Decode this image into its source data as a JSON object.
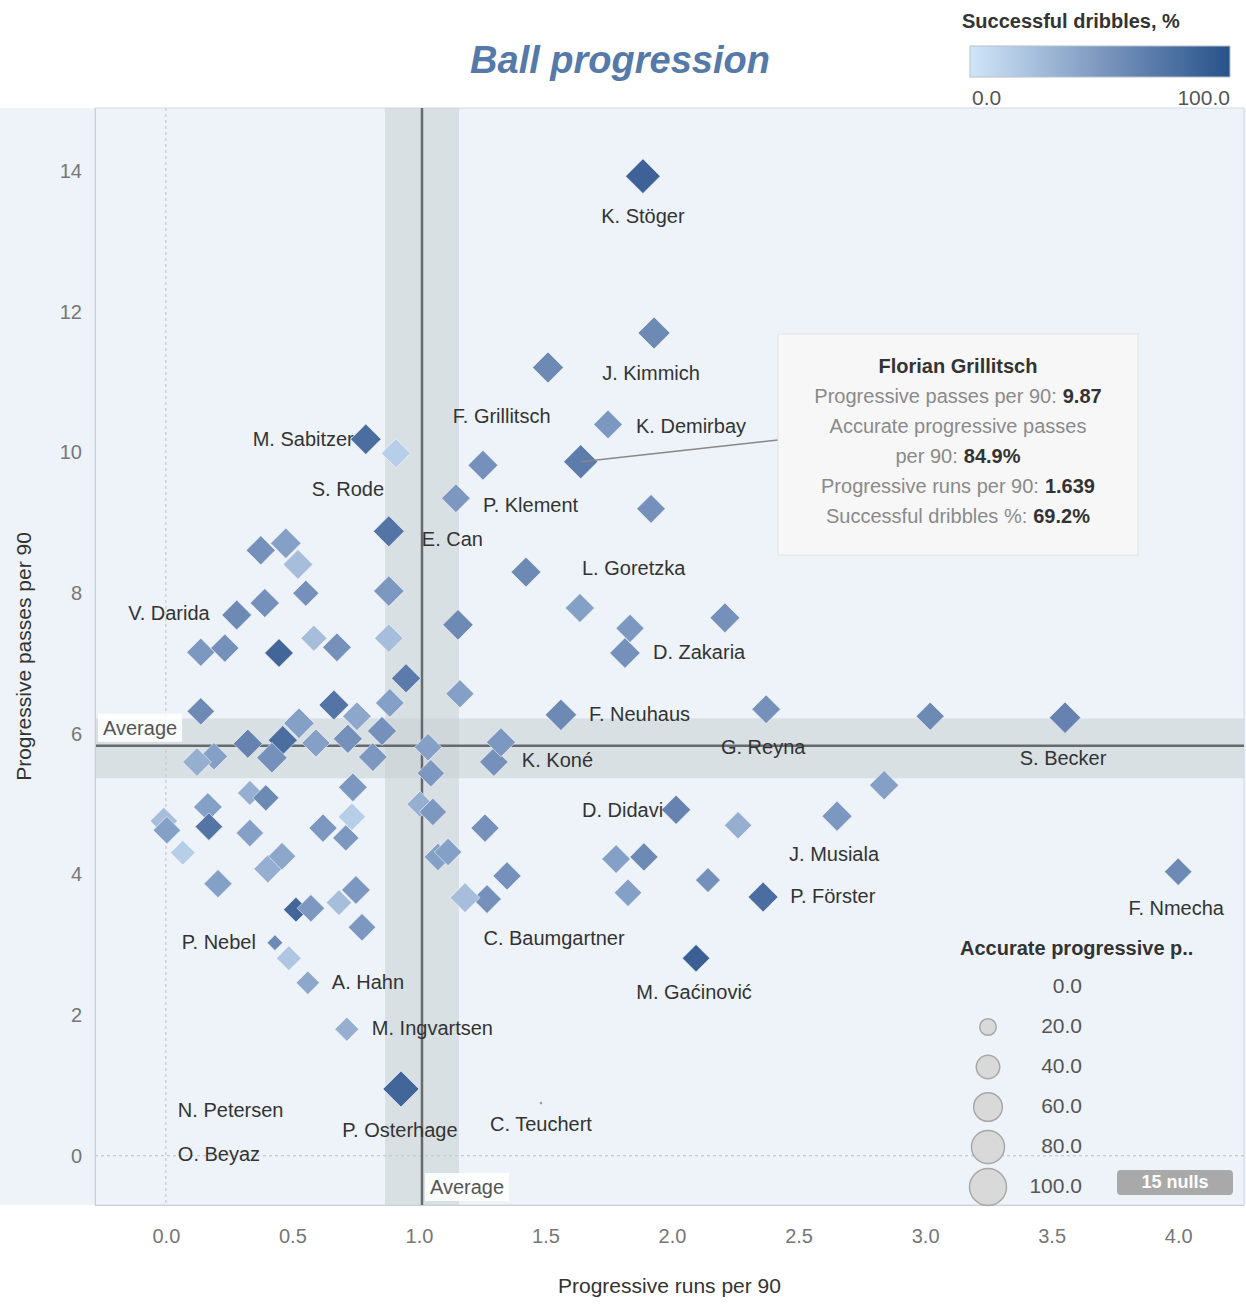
{
  "chart_data": {
    "type": "scatter",
    "title": "Ball progression",
    "x_label": "Progressive runs per 90",
    "y_label": "Progressive passes per 90",
    "marker": "diamond",
    "grid": false,
    "xlim": [
      -0.28,
      4.26
    ],
    "ylim": [
      -0.7,
      14.9
    ],
    "xticks": [
      {
        "value": 0,
        "label": "0.0"
      },
      {
        "value": 0.5,
        "label": "0.5"
      },
      {
        "value": 1,
        "label": "1.0"
      },
      {
        "value": 1.5,
        "label": "1.5"
      },
      {
        "value": 2,
        "label": "2.0"
      },
      {
        "value": 2.5,
        "label": "2.5"
      },
      {
        "value": 3,
        "label": "3.0"
      },
      {
        "value": 3.5,
        "label": "3.5"
      },
      {
        "value": 4,
        "label": "4.0"
      }
    ],
    "yticks": [
      0,
      2,
      4,
      6,
      8,
      10,
      12,
      14
    ],
    "averages": [
      {
        "axis": "x",
        "value": 1.012,
        "band": [
          0.866,
          1.158
        ],
        "label": "Average"
      },
      {
        "axis": "y",
        "value": 5.83,
        "band": [
          5.37,
          6.22
        ],
        "label": "Average"
      }
    ],
    "color_scale": {
      "title": "Successful dribbles, %",
      "range": [
        0,
        100
      ],
      "ticks": [
        {
          "value": 0,
          "label": "0.0"
        },
        {
          "value": 100,
          "label": "100.0"
        }
      ]
    },
    "size_legend": {
      "title": "Accurate progressive p..",
      "values": [
        {
          "value": 0,
          "label": "0.0"
        },
        {
          "value": 20,
          "label": "20.0"
        },
        {
          "value": 40,
          "label": "40.0"
        },
        {
          "value": 60,
          "label": "60.0"
        },
        {
          "value": 80,
          "label": "80.0"
        },
        {
          "value": 100,
          "label": "100.0"
        }
      ]
    },
    "nulls_label": "15 nulls",
    "tooltip": {
      "title": "Florian Grillitsch",
      "rows": [
        {
          "label": "Progressive passes per 90:",
          "value": 9.87
        },
        {
          "label": "Accurate progressive passes per 90:",
          "value": 84.9,
          "value_label": "84.9%"
        },
        {
          "label": "Progressive runs per 90:",
          "value": 1.639
        },
        {
          "label": "Successful dribbles %:",
          "value": 69.2,
          "value_label": "69.2%"
        }
      ]
    },
    "series": [
      {
        "x": [
          1.885,
          1.929,
          1.639,
          1.747,
          0.79,
          0.909,
          1.146,
          0.881,
          1.423,
          0.28,
          1.814,
          1.561,
          1.296,
          2.372,
          3.553,
          2.016,
          2.652,
          2.36,
          4,
          2.095,
          1.269,
          0.431,
          0.561,
          0.715,
          0,
          0,
          0.929,
          1.482,
          1.51,
          1.253,
          1.917,
          1.636,
          1.834,
          2.209,
          1.154,
          1.162,
          0.949,
          0.881,
          0.881,
          0.375,
          0.474,
          0.522,
          0.553,
          0.391,
          0.138,
          0.233,
          0.447,
          0.585,
          0.676,
          0.138,
          0.664,
          0.755,
          0.885,
          0.854,
          0.526,
          0.324,
          0.462,
          0.419,
          0.19,
          0.123,
          0.593,
          0.719,
          0.818,
          1.036,
          1.047,
          1.324,
          0.166,
          0.17,
          -0.008,
          0.004,
          0.067,
          0.206,
          0.332,
          0.332,
          0.395,
          0.403,
          0.459,
          0.621,
          0.711,
          0.739,
          0.735,
          0.751,
          0.775,
          0.684,
          0.514,
          0.573,
          0.486,
          1.004,
          1.055,
          1.075,
          1.115,
          1.182,
          1.261,
          1.348,
          1.779,
          1.889,
          1.826,
          2.142,
          2.261,
          2.838,
          3.02
        ],
        "values": [
          13.93,
          11.7,
          9.87,
          10.4,
          10.19,
          9.99,
          9.35,
          8.88,
          8.3,
          7.69,
          7.15,
          6.27,
          5.6,
          6.35,
          6.23,
          4.92,
          4.83,
          3.68,
          4.04,
          2.81,
          3.65,
          3.03,
          2.46,
          1.8,
          0.63,
          0,
          0.95,
          0.75,
          11.21,
          9.82,
          9.2,
          7.79,
          7.5,
          7.65,
          7.55,
          6.57,
          6.79,
          8.03,
          7.36,
          8.61,
          8.71,
          8.41,
          8,
          7.86,
          7.16,
          7.22,
          7.15,
          7.36,
          7.23,
          6.32,
          6.41,
          6.25,
          6.44,
          6.04,
          6.15,
          5.86,
          5.91,
          5.66,
          5.68,
          5.6,
          5.87,
          5.93,
          5.67,
          5.81,
          5.44,
          5.88,
          4.96,
          4.68,
          4.76,
          4.63,
          4.31,
          3.87,
          4.59,
          5.16,
          5.09,
          4.08,
          4.26,
          4.66,
          4.52,
          5.24,
          4.82,
          3.78,
          3.25,
          3.6,
          3.5,
          3.52,
          2.81,
          5,
          4.89,
          4.25,
          4.32,
          3.67,
          4.66,
          3.98,
          4.22,
          4.25,
          3.74,
          3.92,
          4.7,
          5.27,
          6.25
        ],
        "sizes": [
          88,
          75,
          84.9,
          60,
          68,
          62,
          60,
          70,
          65,
          65,
          68,
          72,
          60,
          60,
          72,
          62,
          66,
          65,
          55,
          55,
          60,
          18,
          40,
          42,
          0,
          0,
          95,
          1,
          70,
          65,
          60,
          62,
          58,
          65,
          68,
          58,
          62,
          68,
          60,
          62,
          68,
          65,
          50,
          62,
          58,
          58,
          60,
          50,
          60,
          55,
          65,
          60,
          60,
          62,
          68,
          62,
          62,
          68,
          55,
          60,
          58,
          62,
          60,
          55,
          55,
          62,
          60,
          55,
          55,
          55,
          45,
          58,
          55,
          45,
          50,
          58,
          55,
          58,
          50,
          60,
          55,
          60,
          55,
          48,
          45,
          55,
          45,
          50,
          55,
          55,
          55,
          65,
          58,
          58,
          60,
          58,
          55,
          45,
          55,
          62,
          58
        ],
        "dribbles": [
          88,
          60,
          69.2,
          50,
          80,
          15,
          50,
          75,
          60,
          60,
          55,
          60,
          55,
          55,
          65,
          65,
          50,
          80,
          60,
          90,
          55,
          60,
          40,
          35,
          0,
          0,
          85,
          50,
          60,
          55,
          55,
          45,
          50,
          55,
          60,
          45,
          70,
          50,
          25,
          55,
          45,
          25,
          55,
          55,
          50,
          55,
          85,
          25,
          55,
          60,
          75,
          40,
          45,
          55,
          45,
          65,
          80,
          55,
          45,
          35,
          45,
          55,
          50,
          45,
          50,
          50,
          45,
          75,
          25,
          45,
          15,
          45,
          45,
          35,
          60,
          35,
          40,
          50,
          50,
          50,
          15,
          50,
          50,
          25,
          85,
          50,
          20,
          35,
          50,
          45,
          45,
          25,
          55,
          55,
          45,
          60,
          45,
          55,
          35,
          45,
          60
        ],
        "labels": [
          "K. Stöger",
          "J. Kimmich",
          "F. Grillitsch",
          "K. Demirbay",
          "M. Sabitzer",
          "S. Rode",
          "P. Klement",
          "E. Can",
          "L. Goretzka",
          "V. Darida",
          "D. Zakaria",
          "F. Neuhaus",
          "K. Koné",
          "G. Reyna",
          "S. Becker",
          "D. Didavi",
          "J. Musiala",
          "P. Förster",
          "F. Nmecha",
          "M. Gaćinović",
          "C. Baumgartner",
          "P. Nebel",
          "A. Hahn",
          "M. Ingvartsen",
          "N. Petersen",
          "O. Beyaz",
          "P. Osterhage",
          "C. Teuchert",
          null,
          null,
          null,
          null,
          null,
          null,
          null,
          null,
          null,
          null,
          null,
          null,
          null,
          null,
          null,
          null,
          null,
          null,
          null,
          null,
          null,
          null,
          null,
          null,
          null,
          null,
          null,
          null,
          null,
          null,
          null,
          null,
          null,
          null,
          null,
          null,
          null,
          null,
          null,
          null,
          null,
          null,
          null,
          null,
          null,
          null,
          null,
          null,
          null,
          null,
          null,
          null,
          null,
          null,
          null,
          null,
          null,
          null,
          null,
          null,
          null,
          null,
          null,
          null,
          null,
          null,
          null,
          null,
          null,
          null,
          null,
          null,
          null
        ]
      }
    ]
  }
}
